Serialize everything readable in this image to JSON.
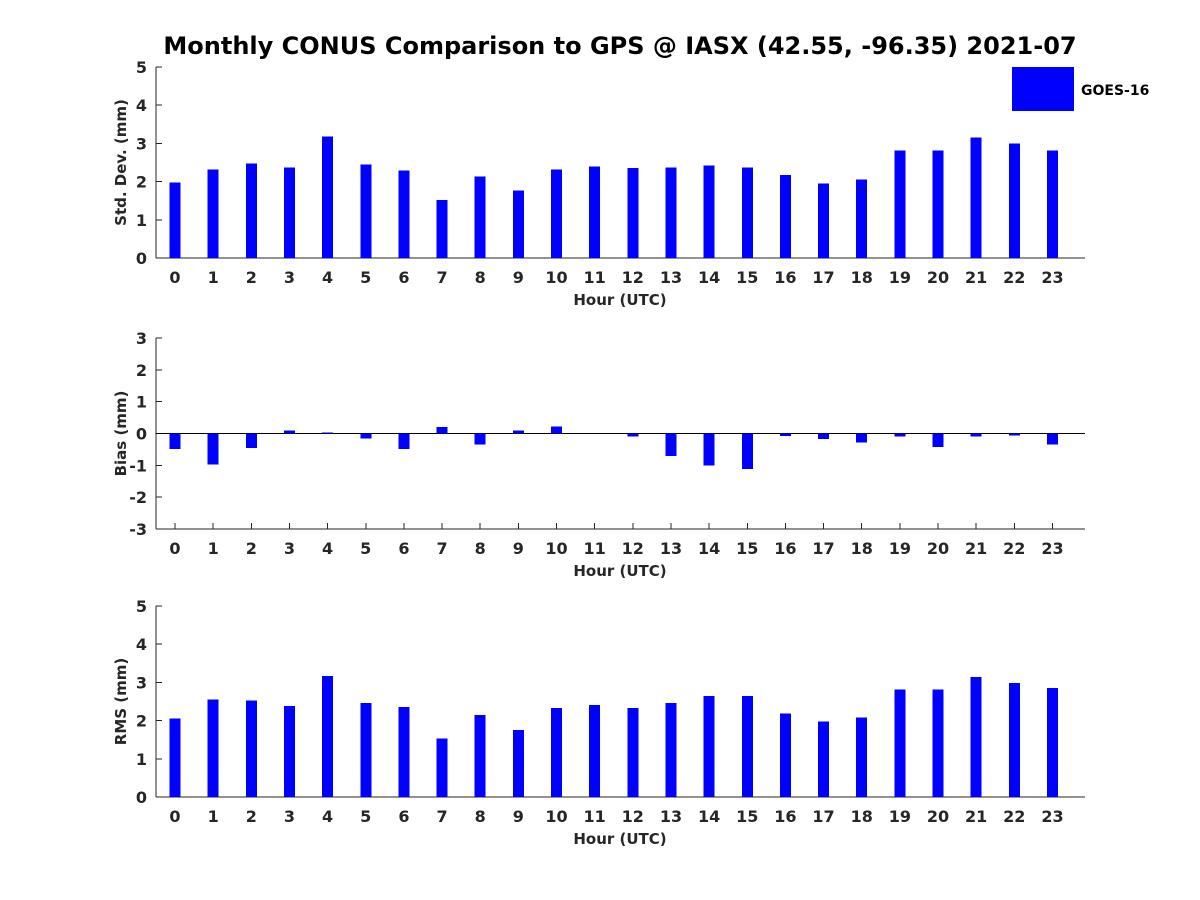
{
  "title": "Monthly CONUS Comparison to GPS @ IASX (42.55, -96.35) 2021-07",
  "legend": {
    "label": "GOES-16",
    "color": "#0000ff"
  },
  "chart_data": [
    {
      "type": "bar",
      "ylabel": "Std. Dev. (mm)",
      "xlabel": "Hour (UTC)",
      "ylim": [
        0,
        5
      ],
      "yticks": [
        0,
        1,
        2,
        3,
        4,
        5
      ],
      "categories": [
        "0",
        "1",
        "2",
        "3",
        "4",
        "5",
        "6",
        "7",
        "8",
        "9",
        "10",
        "11",
        "12",
        "13",
        "14",
        "15",
        "16",
        "17",
        "18",
        "19",
        "20",
        "21",
        "22",
        "23"
      ],
      "series": [
        {
          "name": "GOES-16",
          "color": "#0000ff",
          "values": [
            1.98,
            2.32,
            2.48,
            2.37,
            3.18,
            2.45,
            2.29,
            1.52,
            2.14,
            1.77,
            2.32,
            2.4,
            2.35,
            2.37,
            2.42,
            2.37,
            2.17,
            1.95,
            2.06,
            2.82,
            2.82,
            3.15,
            3.0,
            2.82
          ]
        }
      ],
      "grid": false
    },
    {
      "type": "bar",
      "ylabel": "Bias (mm)",
      "xlabel": "Hour (UTC)",
      "ylim": [
        -3,
        3
      ],
      "yticks": [
        -3,
        -2,
        -1,
        0,
        1,
        2,
        3
      ],
      "categories": [
        "0",
        "1",
        "2",
        "3",
        "4",
        "5",
        "6",
        "7",
        "8",
        "9",
        "10",
        "11",
        "12",
        "13",
        "14",
        "15",
        "16",
        "17",
        "18",
        "19",
        "20",
        "21",
        "22",
        "23"
      ],
      "series": [
        {
          "name": "GOES-16",
          "color": "#0000ff",
          "values": [
            -0.48,
            -0.98,
            -0.45,
            0.1,
            0.03,
            -0.15,
            -0.48,
            0.2,
            -0.35,
            0.1,
            0.22,
            0.0,
            -0.1,
            -0.7,
            -1.0,
            -1.12,
            -0.08,
            -0.17,
            -0.28,
            -0.1,
            -0.42,
            -0.1,
            -0.07,
            -0.35
          ]
        }
      ],
      "zero_line": true,
      "grid": false
    },
    {
      "type": "bar",
      "ylabel": "RMS (mm)",
      "xlabel": "Hour (UTC)",
      "ylim": [
        0,
        5
      ],
      "yticks": [
        0,
        1,
        2,
        3,
        4,
        5
      ],
      "categories": [
        "0",
        "1",
        "2",
        "3",
        "4",
        "5",
        "6",
        "7",
        "8",
        "9",
        "10",
        "11",
        "12",
        "13",
        "14",
        "15",
        "16",
        "17",
        "18",
        "19",
        "20",
        "21",
        "22",
        "23"
      ],
      "series": [
        {
          "name": "GOES-16",
          "color": "#0000ff",
          "values": [
            2.05,
            2.55,
            2.52,
            2.38,
            3.17,
            2.46,
            2.36,
            1.53,
            2.15,
            1.76,
            2.33,
            2.41,
            2.33,
            2.46,
            2.65,
            2.65,
            2.18,
            1.97,
            2.08,
            2.82,
            2.82,
            3.14,
            2.98,
            2.85
          ]
        }
      ],
      "grid": false
    }
  ]
}
